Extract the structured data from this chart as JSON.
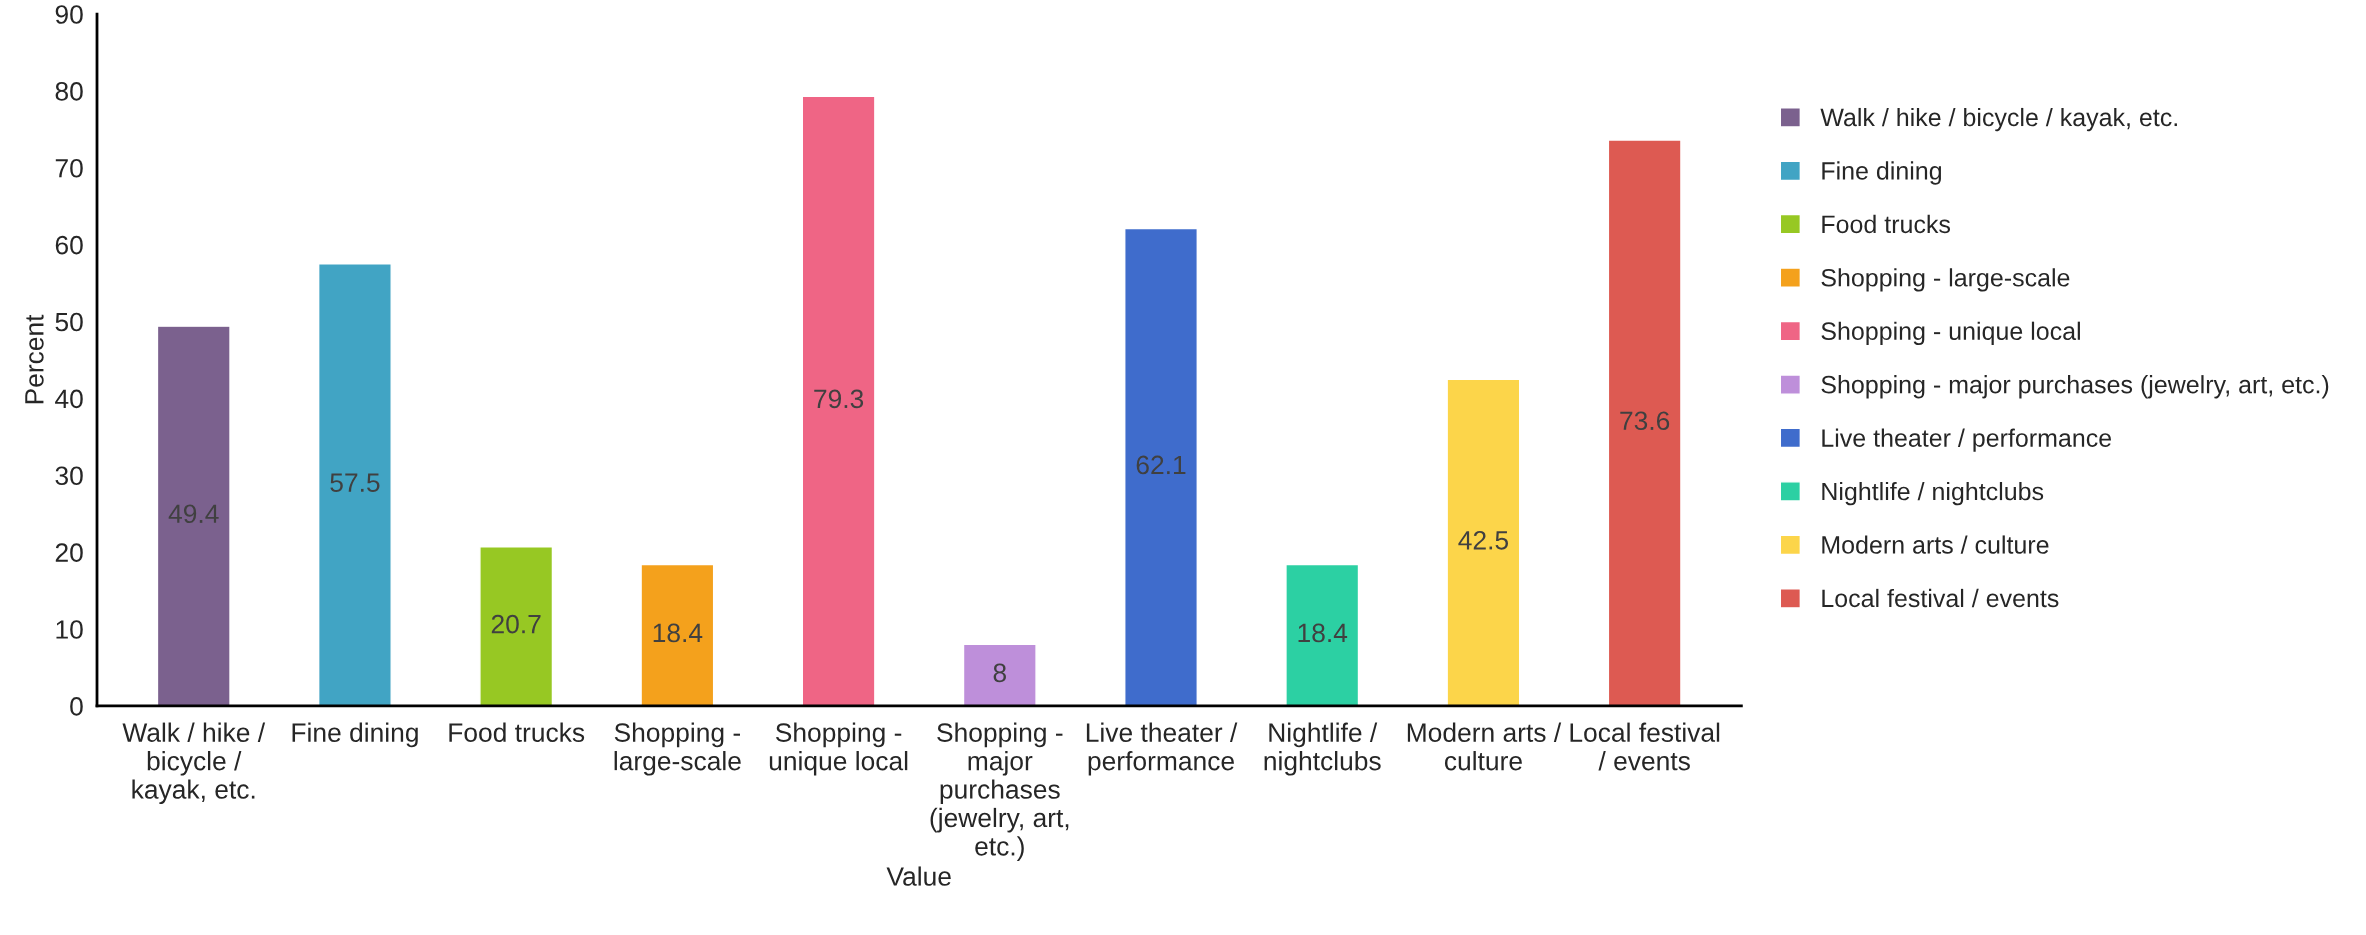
{
  "chart_data": {
    "type": "bar",
    "xlabel": "Value",
    "ylabel": "Percent",
    "categories": [
      "Walk / hike / bicycle / kayak, etc.",
      "Fine dining",
      "Food trucks",
      "Shopping - large-scale",
      "Shopping - unique local",
      "Shopping - major purchases (jewelry, art, etc.)",
      "Live theater / performance",
      "Nightlife / nightclubs",
      "Modern arts / culture",
      "Local festival / events"
    ],
    "series": [
      {
        "name": "Walk / hike / bicycle / kayak, etc.",
        "color": "#7b618e",
        "values": [
          49.4,
          null,
          null,
          null,
          null,
          null,
          null,
          null,
          null,
          null
        ]
      },
      {
        "name": "Fine dining",
        "color": "#41a4c4",
        "values": [
          null,
          57.5,
          null,
          null,
          null,
          null,
          null,
          null,
          null,
          null
        ]
      },
      {
        "name": "Food trucks",
        "color": "#97c823",
        "values": [
          null,
          null,
          20.7,
          null,
          null,
          null,
          null,
          null,
          null,
          null
        ]
      },
      {
        "name": "Shopping - large-scale",
        "color": "#f4a11c",
        "values": [
          null,
          null,
          null,
          18.4,
          null,
          null,
          null,
          null,
          null,
          null
        ]
      },
      {
        "name": "Shopping - unique local",
        "color": "#ef6585",
        "values": [
          null,
          null,
          null,
          null,
          79.3,
          null,
          null,
          null,
          null,
          null
        ]
      },
      {
        "name": "Shopping - major purchases (jewelry, art, etc.)",
        "color": "#be8fda",
        "values": [
          null,
          null,
          null,
          null,
          null,
          8,
          null,
          null,
          null,
          null
        ]
      },
      {
        "name": "Live theater / performance",
        "color": "#3f6ccc",
        "values": [
          null,
          null,
          null,
          null,
          null,
          null,
          62.1,
          null,
          null,
          null
        ]
      },
      {
        "name": "Nightlife / nightclubs",
        "color": "#2cd0a3",
        "values": [
          null,
          null,
          null,
          null,
          null,
          null,
          null,
          18.4,
          null,
          null
        ]
      },
      {
        "name": "Modern arts / culture",
        "color": "#fcd54a",
        "values": [
          null,
          null,
          null,
          null,
          null,
          null,
          null,
          null,
          42.5,
          null
        ]
      },
      {
        "name": "Local festival / events",
        "color": "#dd5a52",
        "values": [
          null,
          null,
          null,
          null,
          null,
          null,
          null,
          null,
          null,
          73.6
        ]
      }
    ],
    "ylim": [
      0,
      90
    ],
    "yticks": [
      0,
      10,
      20,
      30,
      40,
      50,
      60,
      70,
      80,
      90
    ],
    "data_labels": true,
    "legend": "right",
    "grid": false
  }
}
